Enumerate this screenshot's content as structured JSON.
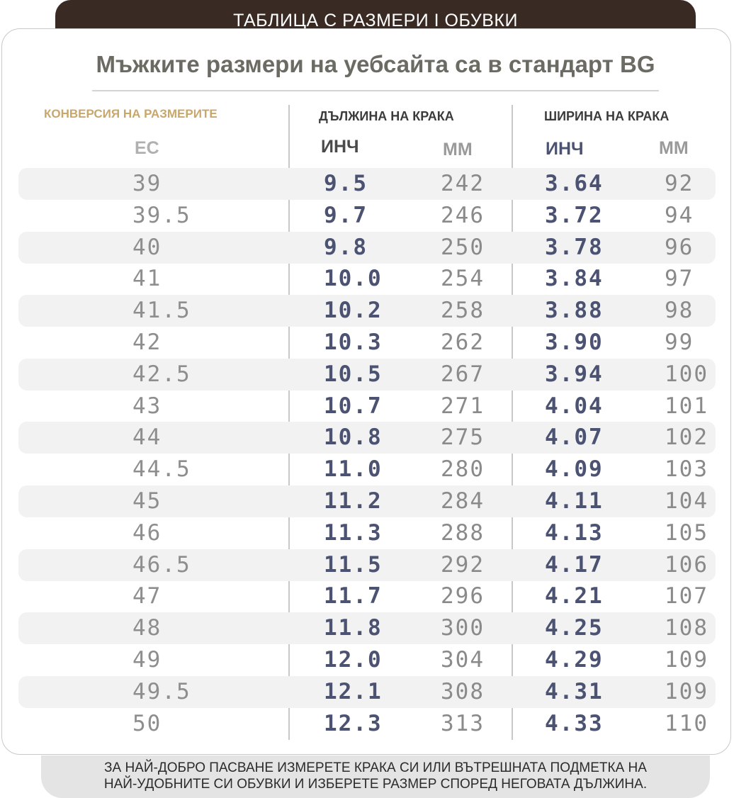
{
  "banner_title": "ТАБЛИЦА С РАЗМЕРИ I ОБУВКИ",
  "subtitle": "Мъжките размери на уебсайта са в стандарт BG",
  "headers": {
    "conversion": "КОНВЕРСИЯ НА РАЗМЕРИТЕ",
    "foot_length": "ДЪЛЖИНА НА КРАКА",
    "foot_width": "ШИРИНА НА КРАКА",
    "eu": "ЕС",
    "inch_length": "ИНЧ",
    "mm_length": "ММ",
    "inch_width": "ИНЧ",
    "mm_width": "ММ"
  },
  "rows": [
    {
      "eu": "39",
      "foot_in": "9.5",
      "foot_mm": "242",
      "width_in": "3.64",
      "width_mm": "92"
    },
    {
      "eu": "39.5",
      "foot_in": "9.7",
      "foot_mm": "246",
      "width_in": "3.72",
      "width_mm": "94"
    },
    {
      "eu": "40",
      "foot_in": "9.8",
      "foot_mm": "250",
      "width_in": "3.78",
      "width_mm": "96"
    },
    {
      "eu": "41",
      "foot_in": "10.0",
      "foot_mm": "254",
      "width_in": "3.84",
      "width_mm": "97"
    },
    {
      "eu": "41.5",
      "foot_in": "10.2",
      "foot_mm": "258",
      "width_in": "3.88",
      "width_mm": "98"
    },
    {
      "eu": "42",
      "foot_in": "10.3",
      "foot_mm": "262",
      "width_in": "3.90",
      "width_mm": "99"
    },
    {
      "eu": "42.5",
      "foot_in": "10.5",
      "foot_mm": "267",
      "width_in": "3.94",
      "width_mm": "100"
    },
    {
      "eu": "43",
      "foot_in": "10.7",
      "foot_mm": "271",
      "width_in": "4.04",
      "width_mm": "101"
    },
    {
      "eu": "44",
      "foot_in": "10.8",
      "foot_mm": "275",
      "width_in": "4.07",
      "width_mm": "102"
    },
    {
      "eu": "44.5",
      "foot_in": "11.0",
      "foot_mm": "280",
      "width_in": "4.09",
      "width_mm": "103"
    },
    {
      "eu": "45",
      "foot_in": "11.2",
      "foot_mm": "284",
      "width_in": "4.11",
      "width_mm": "104"
    },
    {
      "eu": "46",
      "foot_in": "11.3",
      "foot_mm": "288",
      "width_in": "4.13",
      "width_mm": "105"
    },
    {
      "eu": "46.5",
      "foot_in": "11.5",
      "foot_mm": "292",
      "width_in": "4.17",
      "width_mm": "106"
    },
    {
      "eu": "47",
      "foot_in": "11.7",
      "foot_mm": "296",
      "width_in": "4.21",
      "width_mm": "107"
    },
    {
      "eu": "48",
      "foot_in": "11.8",
      "foot_mm": "300",
      "width_in": "4.25",
      "width_mm": "108"
    },
    {
      "eu": "49",
      "foot_in": "12.0",
      "foot_mm": "304",
      "width_in": "4.29",
      "width_mm": "109"
    },
    {
      "eu": "49.5",
      "foot_in": "12.1",
      "foot_mm": "308",
      "width_in": "4.31",
      "width_mm": "109"
    },
    {
      "eu": "50",
      "foot_in": "12.3",
      "foot_mm": "313",
      "width_in": "4.33",
      "width_mm": "110"
    }
  ],
  "footer": {
    "line1": "ЗА НАЙ-ДОБРО ПАСВАНЕ ИЗМЕРЕТЕ КРАКА СИ ИЛИ ВЪТРЕШНАТА ПОДМЕТКА НА",
    "line2": "НАЙ-УДОБНИТЕ СИ ОБУВКИ И ИЗБЕРЕТЕ РАЗМЕР СПОРЕД НЕГОВАТА ДЪЛЖИНА."
  },
  "colors": {
    "banner": "#3a2a24",
    "accent_gold": "#c9a76b",
    "inch_blue": "#4c5372",
    "row_shade": "#f2f2f2"
  }
}
